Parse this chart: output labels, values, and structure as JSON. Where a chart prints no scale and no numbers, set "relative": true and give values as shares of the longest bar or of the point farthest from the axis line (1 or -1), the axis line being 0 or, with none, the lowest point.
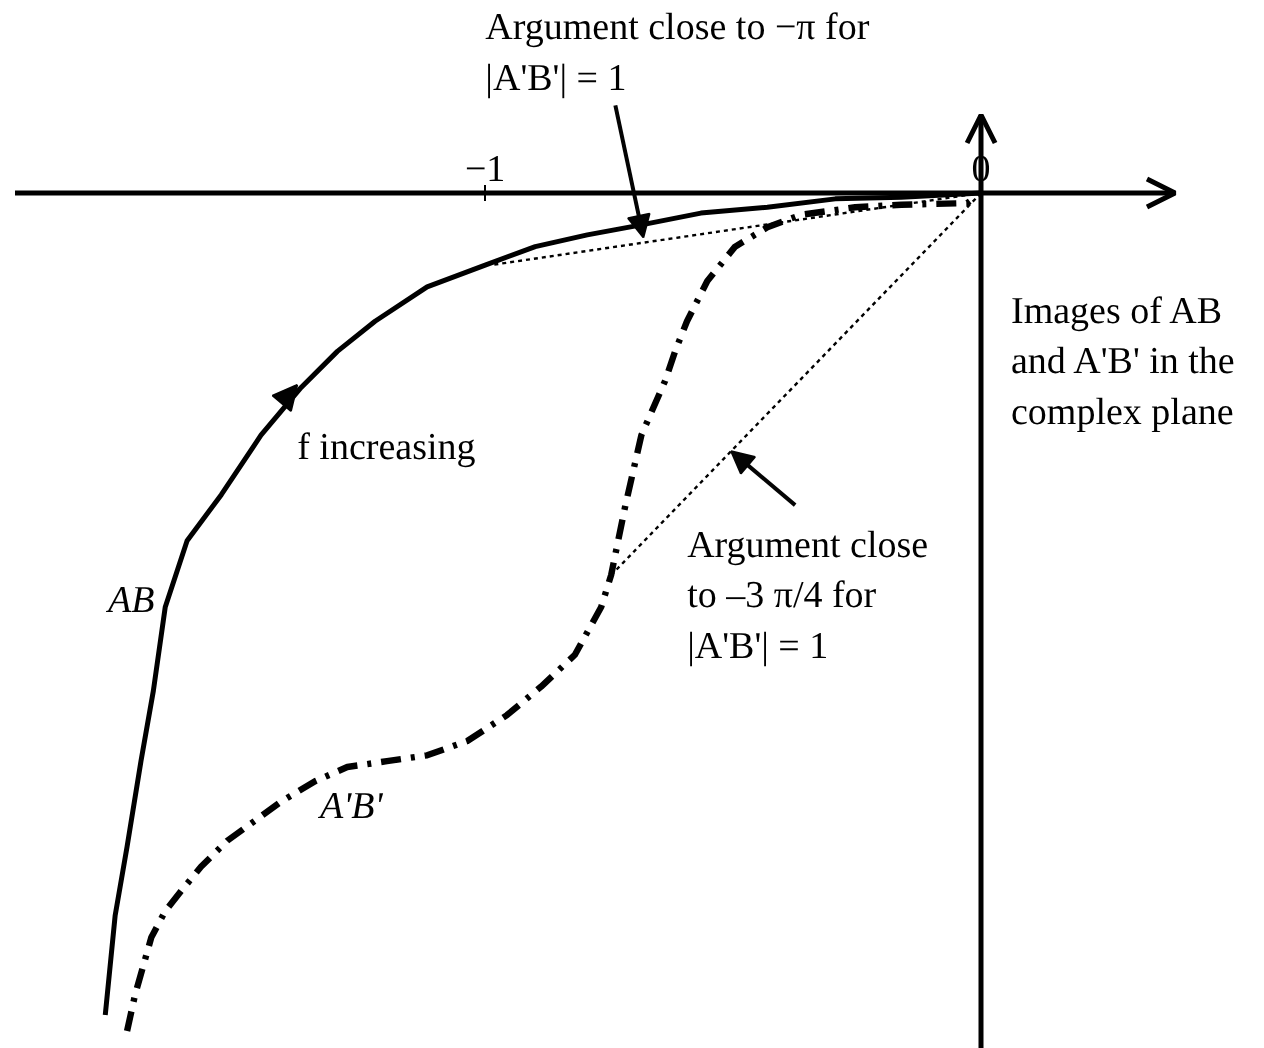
{
  "chart_data": {
    "type": "line",
    "relative": true,
    "xlim": [
      -1.948,
      0.391
    ],
    "xticks": [
      {
        "value": -1,
        "label": "−1"
      },
      0
    ],
    "tick_labels": "x",
    "grid": false,
    "legend": false,
    "ref_lines": [
      {
        "axis": "x",
        "value": 0
      }
    ],
    "series": [
      {
        "name": "AB",
        "color": "#000000",
        "line_style": "solid",
        "x": [
          -1.766,
          -1.746,
          -1.722,
          -1.694,
          -1.669,
          -1.645,
          -1.601,
          -1.532,
          -1.452,
          -1.371,
          -1.298,
          -1.222,
          -1.117,
          -1.0,
          -0.899,
          -0.794,
          -0.685,
          -0.565,
          -0.431,
          -0.294,
          -0.161,
          0
        ],
        "values": [
          -0.981,
          -0.862,
          -0.78,
          -0.678,
          -0.594,
          -0.494,
          -0.415,
          -0.36,
          -0.289,
          -0.232,
          -0.189,
          -0.153,
          -0.112,
          -0.086,
          -0.064,
          -0.05,
          -0.038,
          -0.024,
          -0.017,
          -0.007,
          -0.005,
          0
        ]
      },
      {
        "name": "A'B'",
        "color": "#000000",
        "line_style": "dashdot",
        "x": [
          -1.722,
          -1.706,
          -1.673,
          -1.645,
          -1.613,
          -1.573,
          -1.52,
          -1.464,
          -1.411,
          -1.343,
          -1.278,
          -1.198,
          -1.117,
          -1.036,
          -0.956,
          -0.887,
          -0.819,
          -0.766,
          -0.746,
          -0.718,
          -0.685,
          -0.637,
          -0.617,
          -0.593,
          -0.552,
          -0.496,
          -0.431,
          -0.363,
          -0.254,
          -0.161,
          -0.028,
          0
        ],
        "values": [
          -1.0,
          -0.957,
          -0.888,
          -0.857,
          -0.833,
          -0.804,
          -0.773,
          -0.749,
          -0.726,
          -0.702,
          -0.685,
          -0.678,
          -0.671,
          -0.654,
          -0.623,
          -0.589,
          -0.551,
          -0.494,
          -0.456,
          -0.375,
          -0.289,
          -0.224,
          -0.189,
          -0.153,
          -0.105,
          -0.064,
          -0.041,
          -0.026,
          -0.017,
          -0.014,
          -0.012,
          0
        ]
      },
      {
        "color": "#000000",
        "line_style": "dotted",
        "x": [
          0,
          -0.988
        ],
        "values": [
          0,
          -0.086
        ]
      },
      {
        "color": "#000000",
        "line_style": "dotted",
        "x": [
          0,
          -0.746
        ],
        "values": [
          0,
          -0.456
        ]
      }
    ],
    "annotations": [
      {
        "text": "Argument close to −π for |A'B'| = 1",
        "x": -0.681,
        "y": -0.053
      },
      {
        "text": "f increasing",
        "x": -1.379,
        "y": -0.229
      },
      {
        "text": "Argument close to –3 π/4 for |A'B'| = 1",
        "x": -0.504,
        "y": -0.308
      },
      "Images of AB and A'B' in the complex plane"
    ]
  }
}
